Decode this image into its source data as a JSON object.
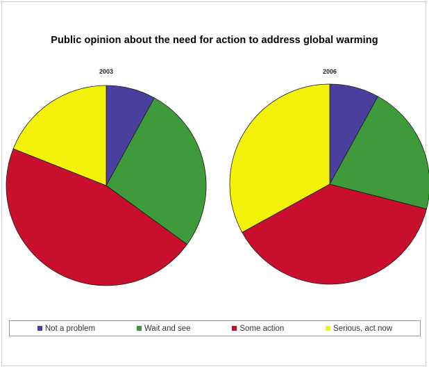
{
  "chart_data": {
    "type": "pie",
    "title": "Public opinion about the need for action to address global warming",
    "categories": [
      "Not a problem",
      "Wait and see",
      "Some action",
      "Serious, act now"
    ],
    "colors": [
      "#4a3f9c",
      "#3f9a3b",
      "#c8102e",
      "#f2f20a"
    ],
    "series": [
      {
        "name": "2003",
        "values": [
          8,
          27,
          46,
          19
        ]
      },
      {
        "name": "2006",
        "values": [
          8,
          21,
          38,
          33
        ]
      }
    ],
    "legend_position": "bottom"
  }
}
